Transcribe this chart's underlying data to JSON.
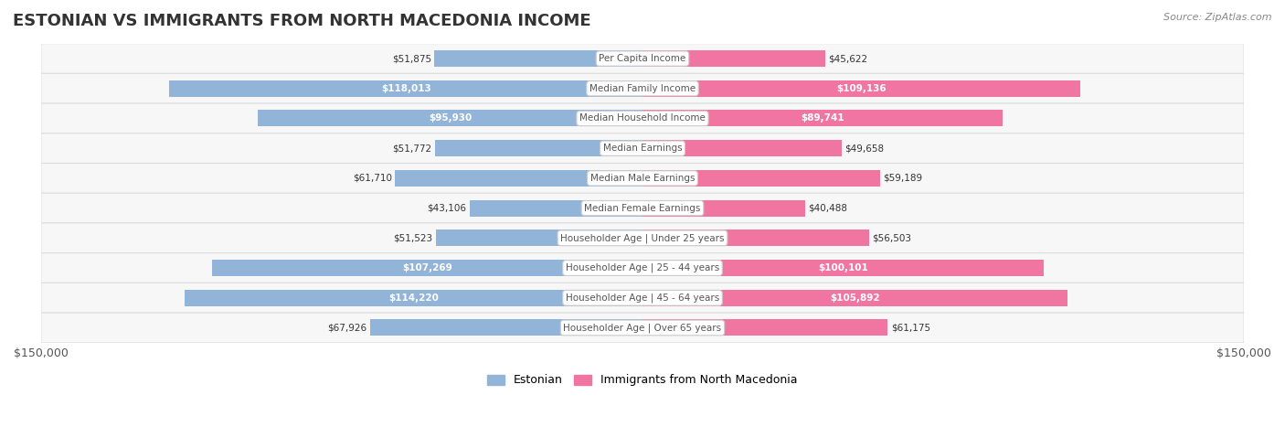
{
  "title": "ESTONIAN VS IMMIGRANTS FROM NORTH MACEDONIA INCOME",
  "source": "Source: ZipAtlas.com",
  "categories": [
    "Per Capita Income",
    "Median Family Income",
    "Median Household Income",
    "Median Earnings",
    "Median Male Earnings",
    "Median Female Earnings",
    "Householder Age | Under 25 years",
    "Householder Age | 25 - 44 years",
    "Householder Age | 45 - 64 years",
    "Householder Age | Over 65 years"
  ],
  "estonian_values": [
    51875,
    118013,
    95930,
    51772,
    61710,
    43106,
    51523,
    107269,
    114220,
    67926
  ],
  "immigrant_values": [
    45622,
    109136,
    89741,
    49658,
    59189,
    40488,
    56503,
    100101,
    105892,
    61175
  ],
  "estonian_labels": [
    "$51,875",
    "$118,013",
    "$95,930",
    "$51,772",
    "$61,710",
    "$43,106",
    "$51,523",
    "$107,269",
    "$114,220",
    "$67,926"
  ],
  "immigrant_labels": [
    "$45,622",
    "$109,136",
    "$89,741",
    "$49,658",
    "$59,189",
    "$40,488",
    "$56,503",
    "$100,101",
    "$105,892",
    "$61,175"
  ],
  "max_value": 150000,
  "estonian_color": "#92b4d9",
  "immigrant_color": "#f075a0",
  "estonian_dark_color": "#6699cc",
  "immigrant_dark_color": "#ee5588",
  "bar_bg_color": "#f0f0f0",
  "row_bg_color": "#f7f7f7",
  "row_border_color": "#dddddd",
  "label_inside_threshold": 70000,
  "bar_height": 0.55
}
